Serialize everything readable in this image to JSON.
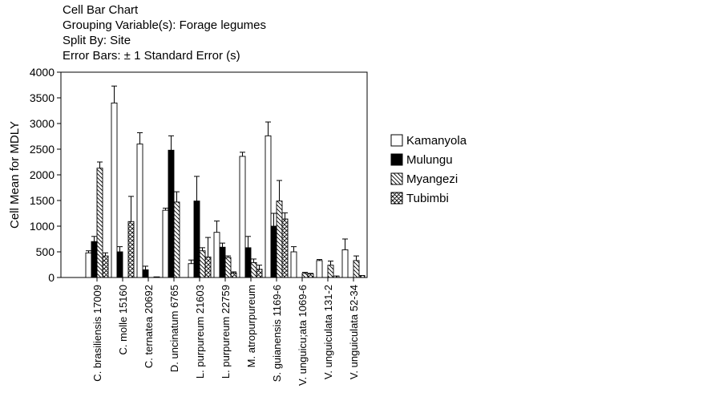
{
  "header": {
    "title": "Cell Bar Chart",
    "grouping": "Grouping Variable(s): Forage legumes",
    "split": "Split By: Site",
    "error_bars": "Error Bars: ± 1 Standard Error (s)"
  },
  "chart_data": {
    "type": "bar",
    "title": "Cell Bar Chart",
    "xlabel": "",
    "ylabel": "Cell Mean for MDLY",
    "ylim": [
      0,
      4000
    ],
    "yticks": [
      0,
      500,
      1000,
      1500,
      2000,
      2500,
      3000,
      3500,
      4000
    ],
    "grid": false,
    "legend_position": "right",
    "error_bars": "± 1 Standard Error",
    "categories": [
      "C. brasiliensis 17009",
      "C. molle 15160",
      "C. ternatea 20692",
      "D. uncinatum 6765",
      "L. purpureum 21603",
      "L. purpureum 22759",
      "M. atropurpureum",
      "S. guianensis 1169-6",
      "V. unguicu;ata 1069-6",
      "V. unguiculata 131-2",
      "V. unguiculata 52-34"
    ],
    "series": [
      {
        "name": "Kamanyola",
        "pattern": "open",
        "values": [
          480,
          3400,
          2600,
          1310,
          270,
          880,
          2360,
          2760,
          500,
          330,
          540
        ],
        "errors": [
          40,
          330,
          220,
          40,
          70,
          220,
          80,
          270,
          100,
          20,
          210
        ]
      },
      {
        "name": "Mulungu",
        "pattern": "solid",
        "values": [
          700,
          500,
          150,
          2480,
          1490,
          590,
          580,
          1000,
          null,
          null,
          null
        ],
        "errors": [
          100,
          100,
          70,
          280,
          480,
          80,
          220,
          250,
          null,
          null,
          null
        ]
      },
      {
        "name": "Myangezi",
        "pattern": "hatch",
        "values": [
          2130,
          null,
          null,
          1470,
          520,
          390,
          290,
          1490,
          80,
          240,
          330
        ],
        "errors": [
          120,
          null,
          null,
          200,
          60,
          30,
          70,
          400,
          20,
          80,
          90
        ]
      },
      {
        "name": "Tubimbi",
        "pattern": "crosshatch",
        "values": [
          420,
          1090,
          10,
          null,
          400,
          90,
          160,
          1140,
          70,
          30,
          40
        ],
        "errors": [
          60,
          490,
          null,
          null,
          380,
          20,
          80,
          120,
          10,
          null,
          null
        ]
      }
    ]
  }
}
